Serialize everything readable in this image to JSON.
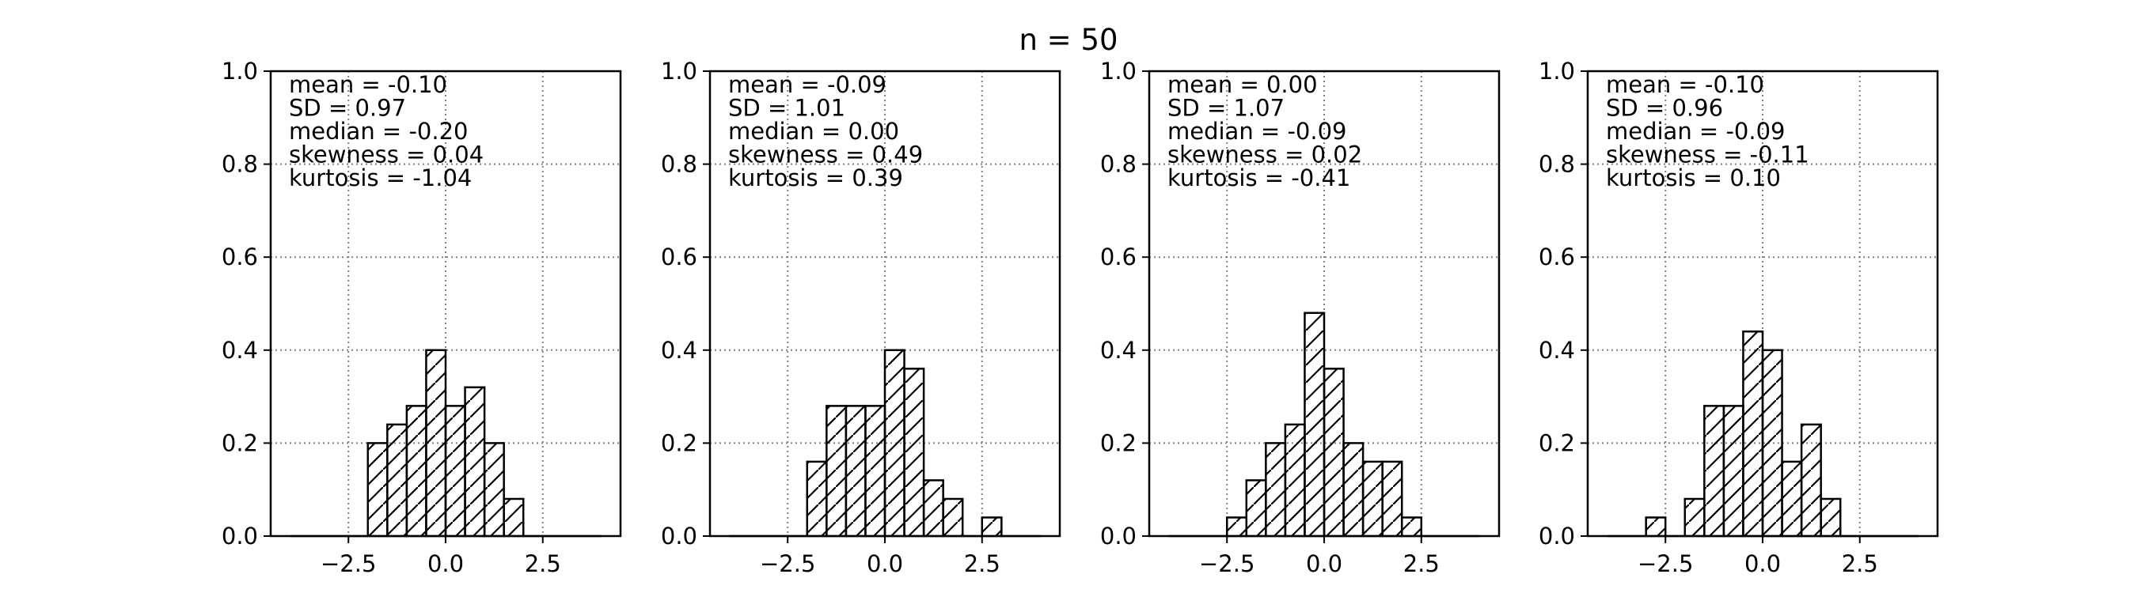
{
  "figure": {
    "title": "n = 50"
  },
  "chart_data": [
    {
      "type": "bar",
      "bin_edges": [
        -4.0,
        -3.5,
        -3.0,
        -2.5,
        -2.0,
        -1.5,
        -1.0,
        -0.5,
        0.0,
        0.5,
        1.0,
        1.5,
        2.0,
        2.5,
        3.0,
        3.5,
        4.0
      ],
      "values": [
        0,
        0,
        0,
        0,
        0.2,
        0.24,
        0.28,
        0.4,
        0.28,
        0.32,
        0.2,
        0.08,
        0,
        0,
        0,
        0
      ],
      "xticks": [
        -2.5,
        0.0,
        2.5
      ],
      "xtick_labels": [
        "−2.5",
        "0.0",
        "2.5"
      ],
      "yticks": [
        0.0,
        0.2,
        0.4,
        0.6,
        0.8,
        1.0
      ],
      "ytick_labels": [
        "0.0",
        "0.2",
        "0.4",
        "0.6",
        "0.8",
        "1.0"
      ],
      "xlim": [
        -4.5,
        4.5
      ],
      "ylim": [
        0,
        1.0
      ],
      "grid": true,
      "annotations": [
        "mean = -0.10",
        "SD = 0.97",
        "median = -0.20",
        "skewness = 0.04",
        "kurtosis = -1.04"
      ]
    },
    {
      "type": "bar",
      "bin_edges": [
        -4.0,
        -3.5,
        -3.0,
        -2.5,
        -2.0,
        -1.5,
        -1.0,
        -0.5,
        0.0,
        0.5,
        1.0,
        1.5,
        2.0,
        2.5,
        3.0,
        3.5,
        4.0
      ],
      "values": [
        0,
        0,
        0,
        0,
        0.16,
        0.28,
        0.28,
        0.28,
        0.4,
        0.36,
        0.12,
        0.08,
        0,
        0.04,
        0,
        0
      ],
      "xticks": [
        -2.5,
        0.0,
        2.5
      ],
      "xtick_labels": [
        "−2.5",
        "0.0",
        "2.5"
      ],
      "yticks": [
        0.0,
        0.2,
        0.4,
        0.6,
        0.8,
        1.0
      ],
      "ytick_labels": [
        "0.0",
        "0.2",
        "0.4",
        "0.6",
        "0.8",
        "1.0"
      ],
      "xlim": [
        -4.5,
        4.5
      ],
      "ylim": [
        0,
        1.0
      ],
      "grid": true,
      "annotations": [
        "mean = -0.09",
        "SD = 1.01",
        "median = 0.00",
        "skewness = 0.49",
        "kurtosis = 0.39"
      ]
    },
    {
      "type": "bar",
      "bin_edges": [
        -4.0,
        -3.5,
        -3.0,
        -2.5,
        -2.0,
        -1.5,
        -1.0,
        -0.5,
        0.0,
        0.5,
        1.0,
        1.5,
        2.0,
        2.5,
        3.0,
        3.5,
        4.0
      ],
      "values": [
        0,
        0,
        0,
        0.04,
        0.12,
        0.2,
        0.24,
        0.48,
        0.36,
        0.2,
        0.16,
        0.16,
        0.04,
        0,
        0,
        0
      ],
      "xticks": [
        -2.5,
        0.0,
        2.5
      ],
      "xtick_labels": [
        "−2.5",
        "0.0",
        "2.5"
      ],
      "yticks": [
        0.0,
        0.2,
        0.4,
        0.6,
        0.8,
        1.0
      ],
      "ytick_labels": [
        "0.0",
        "0.2",
        "0.4",
        "0.6",
        "0.8",
        "1.0"
      ],
      "xlim": [
        -4.5,
        4.5
      ],
      "ylim": [
        0,
        1.0
      ],
      "grid": true,
      "annotations": [
        "mean = 0.00",
        "SD = 1.07",
        "median = -0.09",
        "skewness = 0.02",
        "kurtosis = -0.41"
      ]
    },
    {
      "type": "bar",
      "bin_edges": [
        -4.0,
        -3.5,
        -3.0,
        -2.5,
        -2.0,
        -1.5,
        -1.0,
        -0.5,
        0.0,
        0.5,
        1.0,
        1.5,
        2.0,
        2.5,
        3.0,
        3.5,
        4.0
      ],
      "values": [
        0,
        0,
        0.04,
        0,
        0.08,
        0.28,
        0.28,
        0.44,
        0.4,
        0.16,
        0.24,
        0.08,
        0,
        0,
        0,
        0
      ],
      "xticks": [
        -2.5,
        0.0,
        2.5
      ],
      "xtick_labels": [
        "−2.5",
        "0.0",
        "2.5"
      ],
      "yticks": [
        0.0,
        0.2,
        0.4,
        0.6,
        0.8,
        1.0
      ],
      "ytick_labels": [
        "0.0",
        "0.2",
        "0.4",
        "0.6",
        "0.8",
        "1.0"
      ],
      "xlim": [
        -4.5,
        4.5
      ],
      "ylim": [
        0,
        1.0
      ],
      "grid": true,
      "annotations": [
        "mean = -0.10",
        "SD = 0.96",
        "median = -0.09",
        "skewness = -0.11",
        "kurtosis = 0.10"
      ]
    }
  ]
}
